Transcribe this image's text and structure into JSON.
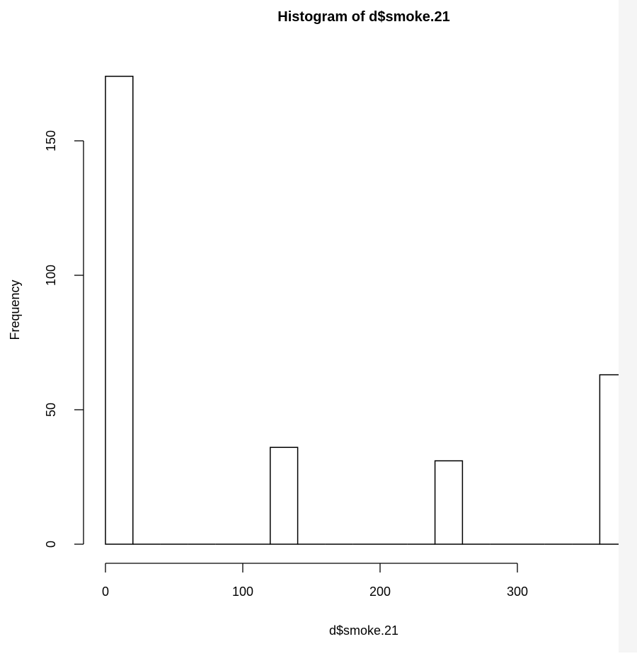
{
  "chart_data": {
    "type": "bar",
    "title": "Histogram of d$smoke.21",
    "xlabel": "d$smoke.21",
    "ylabel": "Frequency",
    "bins": [
      {
        "x0": 0,
        "x1": 20,
        "count": 174
      },
      {
        "x0": 20,
        "x1": 40,
        "count": 0
      },
      {
        "x0": 40,
        "x1": 60,
        "count": 0
      },
      {
        "x0": 60,
        "x1": 80,
        "count": 0
      },
      {
        "x0": 80,
        "x1": 100,
        "count": 0
      },
      {
        "x0": 100,
        "x1": 120,
        "count": 0
      },
      {
        "x0": 120,
        "x1": 140,
        "count": 36
      },
      {
        "x0": 140,
        "x1": 160,
        "count": 0
      },
      {
        "x0": 160,
        "x1": 180,
        "count": 0
      },
      {
        "x0": 180,
        "x1": 200,
        "count": 0
      },
      {
        "x0": 200,
        "x1": 220,
        "count": 0
      },
      {
        "x0": 220,
        "x1": 240,
        "count": 0
      },
      {
        "x0": 240,
        "x1": 260,
        "count": 31
      },
      {
        "x0": 260,
        "x1": 280,
        "count": 0
      },
      {
        "x0": 280,
        "x1": 300,
        "count": 0
      },
      {
        "x0": 300,
        "x1": 320,
        "count": 0
      },
      {
        "x0": 320,
        "x1": 340,
        "count": 0
      },
      {
        "x0": 340,
        "x1": 360,
        "count": 0
      },
      {
        "x0": 360,
        "x1": 380,
        "count": 63
      }
    ],
    "xticks": [
      0,
      100,
      200,
      300
    ],
    "yticks": [
      0,
      50,
      100,
      150
    ],
    "xlim": [
      0,
      380
    ],
    "ylim": [
      0,
      174
    ],
    "grid": false,
    "legend": "none",
    "bar_fill": "#ffffff",
    "bar_stroke": "#000000"
  }
}
